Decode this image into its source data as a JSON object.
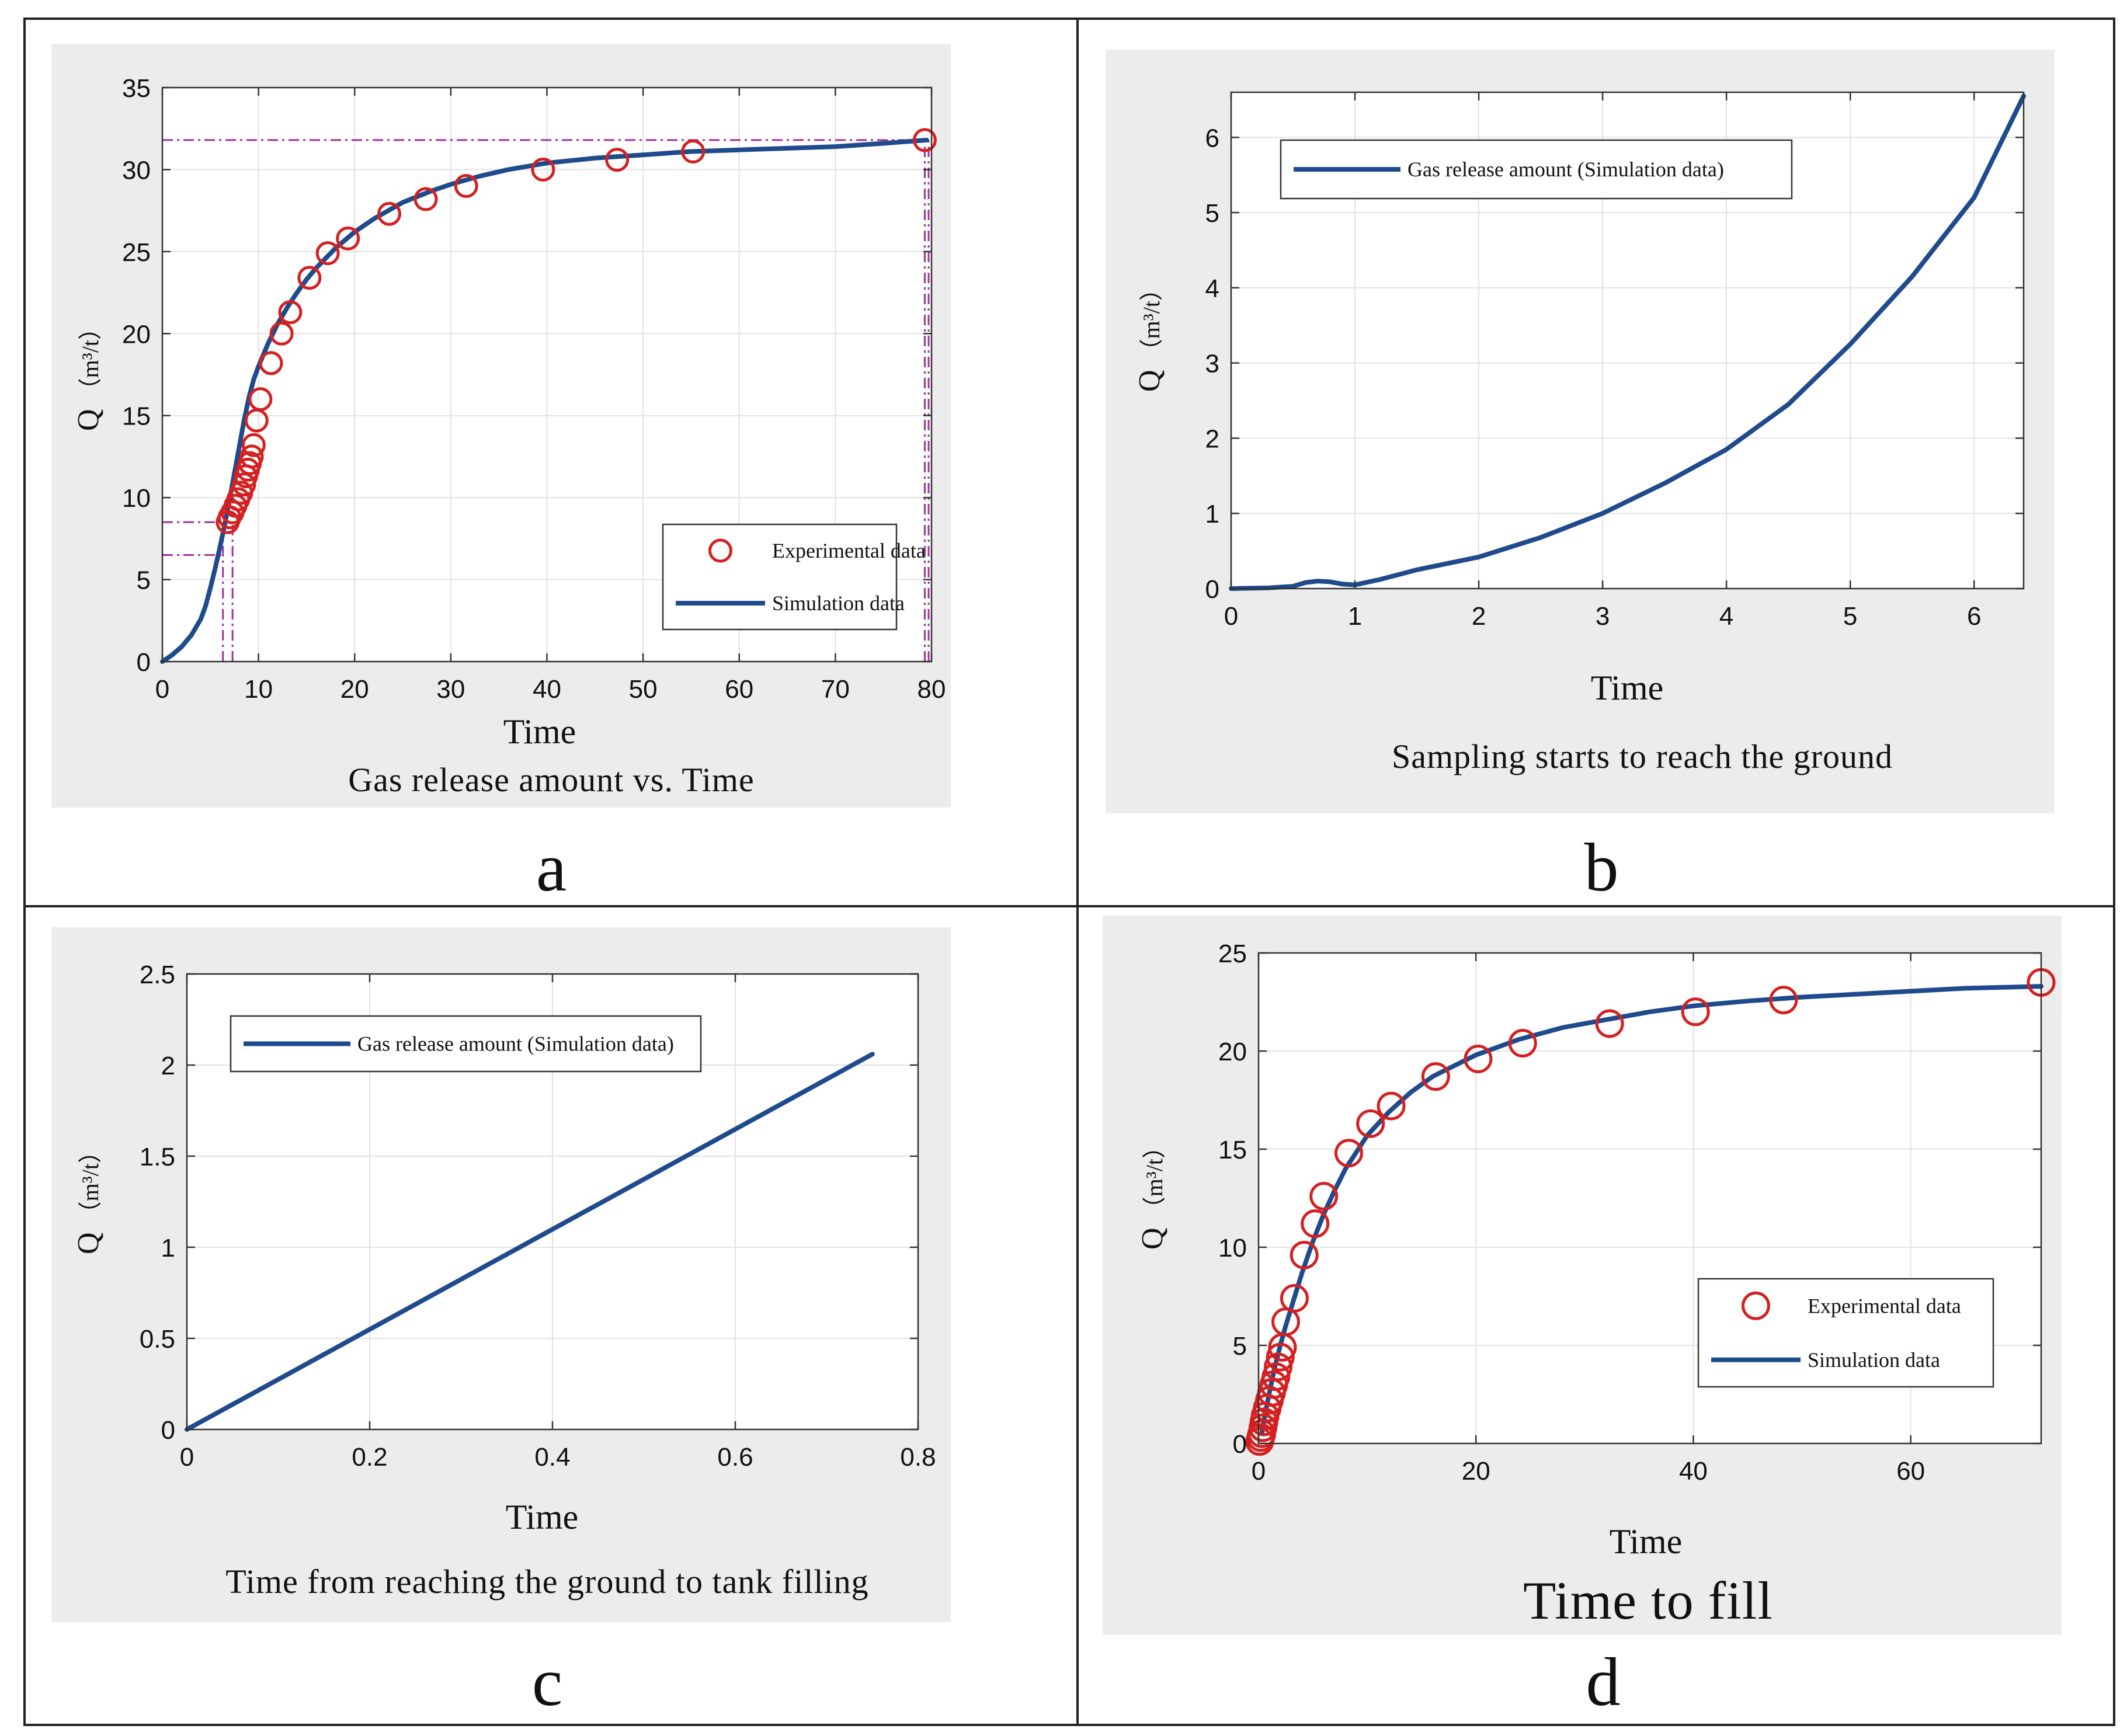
{
  "charts": [
    {
      "id": "a",
      "letter": "a",
      "caption": "Gas release amount vs. Time",
      "chart_data": {
        "type": "scatter",
        "title": "Gas release amount vs. Time",
        "xlabel": "Time",
        "ylabel": "Q",
        "ylabel_unit": "（m³/t）",
        "xlim": [
          0,
          80
        ],
        "ylim": [
          0,
          35
        ],
        "xticks": [
          0,
          10,
          20,
          30,
          40,
          50,
          60,
          70,
          80
        ],
        "yticks": [
          0,
          5,
          10,
          15,
          20,
          25,
          30,
          35
        ],
        "grid": true,
        "legend_position": "bottom-right",
        "series": [
          {
            "name": "Experimental data",
            "kind": "markers",
            "color": "#d42020",
            "x": [
              6.8,
              7.0,
              7.3,
              7.6,
              7.9,
              8.2,
              8.5,
              8.7,
              8.9,
              9.1,
              9.3,
              9.5,
              9.8,
              10.2,
              11.3,
              12.4,
              13.3,
              15.3,
              17.2,
              19.3,
              23.6,
              27.4,
              31.6,
              39.6,
              47.3,
              55.2,
              79.3
            ],
            "y": [
              8.5,
              8.8,
              9.1,
              9.5,
              9.9,
              10.3,
              10.8,
              11.3,
              11.7,
              12.1,
              12.5,
              13.2,
              14.7,
              16.0,
              18.2,
              20.0,
              21.3,
              23.4,
              24.9,
              25.8,
              27.3,
              28.2,
              29.0,
              30.0,
              30.6,
              31.1,
              31.8
            ]
          },
          {
            "name": "Simulation data",
            "kind": "line",
            "color": "#1f4a8c",
            "x": [
              0,
              1,
              2,
              3,
              4,
              4.5,
              5,
              5.5,
              6,
              6.5,
              7,
              7.5,
              8,
              8.5,
              9,
              9.5,
              10,
              11,
              12,
              13,
              14,
              15,
              16,
              17,
              18,
              20,
              22,
              25,
              28,
              30,
              33,
              36,
              40,
              45,
              50,
              55,
              60,
              65,
              70,
              75,
              79.5
            ],
            "y": [
              0,
              0.4,
              0.9,
              1.6,
              2.6,
              3.4,
              4.5,
              5.7,
              7.0,
              8.4,
              9.9,
              11.5,
              13.1,
              14.7,
              16.1,
              17.2,
              18.0,
              19.4,
              20.6,
              21.6,
              22.5,
              23.3,
              24.0,
              24.6,
              25.2,
              26.2,
              27.0,
              28.0,
              28.7,
              29.1,
              29.6,
              30.0,
              30.4,
              30.7,
              30.9,
              31.1,
              31.2,
              31.3,
              31.4,
              31.6,
              31.8
            ]
          }
        ],
        "reference_lines": [
          {
            "orientation": "horizontal",
            "value": 8.5,
            "x_from": 0,
            "x_to": 6.8
          },
          {
            "orientation": "horizontal",
            "value": 6.5,
            "x_from": 0,
            "x_to": 6.3
          },
          {
            "orientation": "horizontal",
            "value": 31.8,
            "x_from": 0,
            "x_to": 79.3
          },
          {
            "orientation": "vertical",
            "value": 6.3,
            "y_from": 0,
            "y_to": 8.5
          },
          {
            "orientation": "vertical",
            "value": 7.3,
            "y_from": 0,
            "y_to": 8.5
          },
          {
            "orientation": "vertical",
            "value": 79.3,
            "y_from": 0,
            "y_to": 31.8
          },
          {
            "orientation": "vertical",
            "value": 79.7,
            "y_from": 0,
            "y_to": 31.8
          }
        ],
        "reference_color": "#a0309a"
      }
    },
    {
      "id": "b",
      "letter": "b",
      "caption": "Sampling starts to reach the ground",
      "chart_data": {
        "type": "line",
        "title": "Sampling starts to reach the ground",
        "xlabel": "Time",
        "ylabel": "Q",
        "ylabel_unit": "（m³/t）",
        "xlim": [
          0,
          6.4
        ],
        "ylim": [
          0,
          6.6
        ],
        "xticks": [
          0,
          1,
          2,
          3,
          4,
          5,
          6
        ],
        "yticks": [
          0,
          1,
          2,
          3,
          4,
          5,
          6
        ],
        "grid": true,
        "legend_position": "top-left",
        "series": [
          {
            "name": "Gas release amount (Simulation data)",
            "kind": "line",
            "color": "#1f4a8c",
            "x": [
              0,
              0.3,
              0.5,
              0.6,
              0.7,
              0.8,
              0.9,
              1.0,
              1.2,
              1.5,
              2.0,
              2.5,
              3.0,
              3.5,
              4.0,
              4.5,
              5.0,
              5.5,
              6.0,
              6.4
            ],
            "y": [
              0,
              0.01,
              0.03,
              0.08,
              0.1,
              0.09,
              0.06,
              0.05,
              0.12,
              0.25,
              0.42,
              0.68,
              1.0,
              1.4,
              1.85,
              2.45,
              3.25,
              4.15,
              5.2,
              6.55
            ]
          }
        ]
      }
    },
    {
      "id": "c",
      "letter": "c",
      "caption": "Time from reaching the ground to tank filling",
      "chart_data": {
        "type": "line",
        "title": "Time from reaching the ground to tank filling",
        "xlabel": "Time",
        "ylabel": "Q",
        "ylabel_unit": "（m³/t）",
        "xlim": [
          0,
          0.8
        ],
        "ylim": [
          0,
          2.5
        ],
        "xticks": [
          0,
          0.2,
          0.4,
          0.6,
          0.8
        ],
        "yticks": [
          0,
          0.5,
          1,
          1.5,
          2,
          2.5
        ],
        "grid": true,
        "legend_position": "top-left",
        "series": [
          {
            "name": "Gas release amount (Simulation data)",
            "kind": "line",
            "color": "#1f4a8c",
            "x": [
              0,
              0.75
            ],
            "y": [
              0,
              2.06
            ]
          }
        ]
      }
    },
    {
      "id": "d",
      "letter": "d",
      "caption": "Time to fill",
      "chart_data": {
        "type": "scatter",
        "title": "Time to fill",
        "xlabel": "Time",
        "ylabel": "Q",
        "ylabel_unit": "（m³/t）",
        "xlim": [
          0,
          72
        ],
        "ylim": [
          0,
          25
        ],
        "xticks": [
          0,
          20,
          40,
          60
        ],
        "yticks": [
          0,
          5,
          10,
          15,
          20,
          25
        ],
        "grid": true,
        "legend_position": "bottom-right",
        "series": [
          {
            "name": "Experimental data",
            "kind": "markers",
            "color": "#d42020",
            "x": [
              0.1,
              0.2,
              0.3,
              0.4,
              0.5,
              0.6,
              0.8,
              1.0,
              1.2,
              1.4,
              1.6,
              1.8,
              2.0,
              2.2,
              2.5,
              3.3,
              4.2,
              5.2,
              6.0,
              8.3,
              10.3,
              12.2,
              16.3,
              20.2,
              24.3,
              32.3,
              40.2,
              48.3,
              72.0
            ],
            "y": [
              0.1,
              0.3,
              0.5,
              0.8,
              1.1,
              1.4,
              1.8,
              2.2,
              2.6,
              3.0,
              3.4,
              3.9,
              4.4,
              4.9,
              6.2,
              7.4,
              9.6,
              11.2,
              12.6,
              14.8,
              16.3,
              17.2,
              18.7,
              19.6,
              20.4,
              21.4,
              22.0,
              22.6,
              23.5
            ]
          },
          {
            "name": "Simulation data",
            "kind": "line",
            "color": "#1f4a8c",
            "x": [
              0.3,
              0.6,
              1,
              1.5,
              2,
              2.5,
              3,
              4,
              5,
              6,
              7,
              8,
              10,
              12,
              14,
              16,
              20,
              24,
              28,
              32,
              36,
              40,
              45,
              50,
              55,
              60,
              65,
              72
            ],
            "y": [
              0.5,
              1.5,
              2.6,
              3.9,
              5.0,
              6.0,
              6.9,
              8.7,
              10.3,
              11.7,
              12.9,
              14.0,
              15.7,
              16.9,
              17.9,
              18.7,
              19.8,
              20.6,
              21.2,
              21.6,
              22.0,
              22.3,
              22.55,
              22.75,
              22.9,
              23.05,
              23.2,
              23.3
            ]
          }
        ]
      }
    }
  ]
}
